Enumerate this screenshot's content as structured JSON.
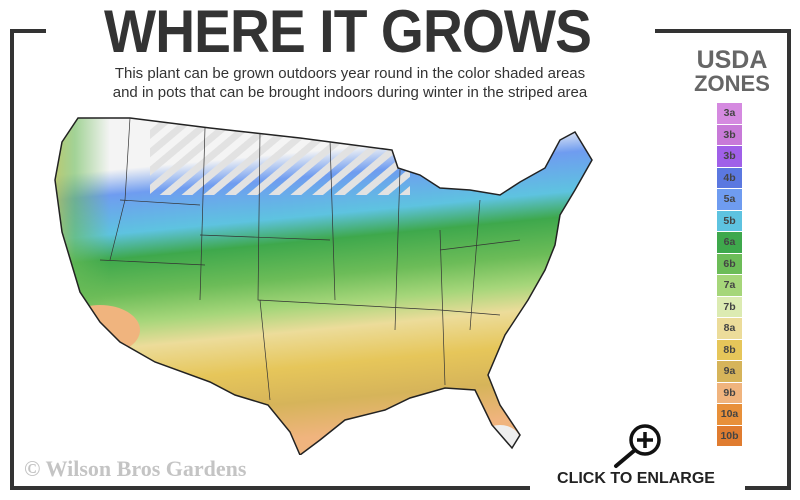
{
  "header": {
    "title": "WHERE IT GROWS",
    "subtitle_line1": "This plant can be grown outdoors year round in the color shaded areas",
    "subtitle_line2": "and in pots that can be brought indoors during winter in the striped area"
  },
  "legend": {
    "title_line1": "USDA",
    "title_line2": "ZONES",
    "zones": [
      {
        "label": "3a",
        "color": "#d58ae0"
      },
      {
        "label": "3b",
        "color": "#c87ad8"
      },
      {
        "label": "3b",
        "color": "#a060e8"
      },
      {
        "label": "4b",
        "color": "#5b78e0"
      },
      {
        "label": "5a",
        "color": "#6f9cf0"
      },
      {
        "label": "5b",
        "color": "#5ec3e0"
      },
      {
        "label": "6a",
        "color": "#3ea84c"
      },
      {
        "label": "6b",
        "color": "#6cbc58"
      },
      {
        "label": "7a",
        "color": "#a6d67a"
      },
      {
        "label": "7b",
        "color": "#dcebb2"
      },
      {
        "label": "8a",
        "color": "#ecdc9a"
      },
      {
        "label": "8b",
        "color": "#e6c65a"
      },
      {
        "label": "9a",
        "color": "#d6b45a"
      },
      {
        "label": "9b",
        "color": "#f0b47e"
      },
      {
        "label": "10a",
        "color": "#e8903a"
      },
      {
        "label": "10b",
        "color": "#e07c30"
      }
    ]
  },
  "map": {
    "icon": "usa-zone-map"
  },
  "footer": {
    "copyright": "© Wilson Bros Gardens",
    "enlarge_label": "CLICK TO ENLARGE",
    "enlarge_icon": "zoom-in-icon"
  }
}
